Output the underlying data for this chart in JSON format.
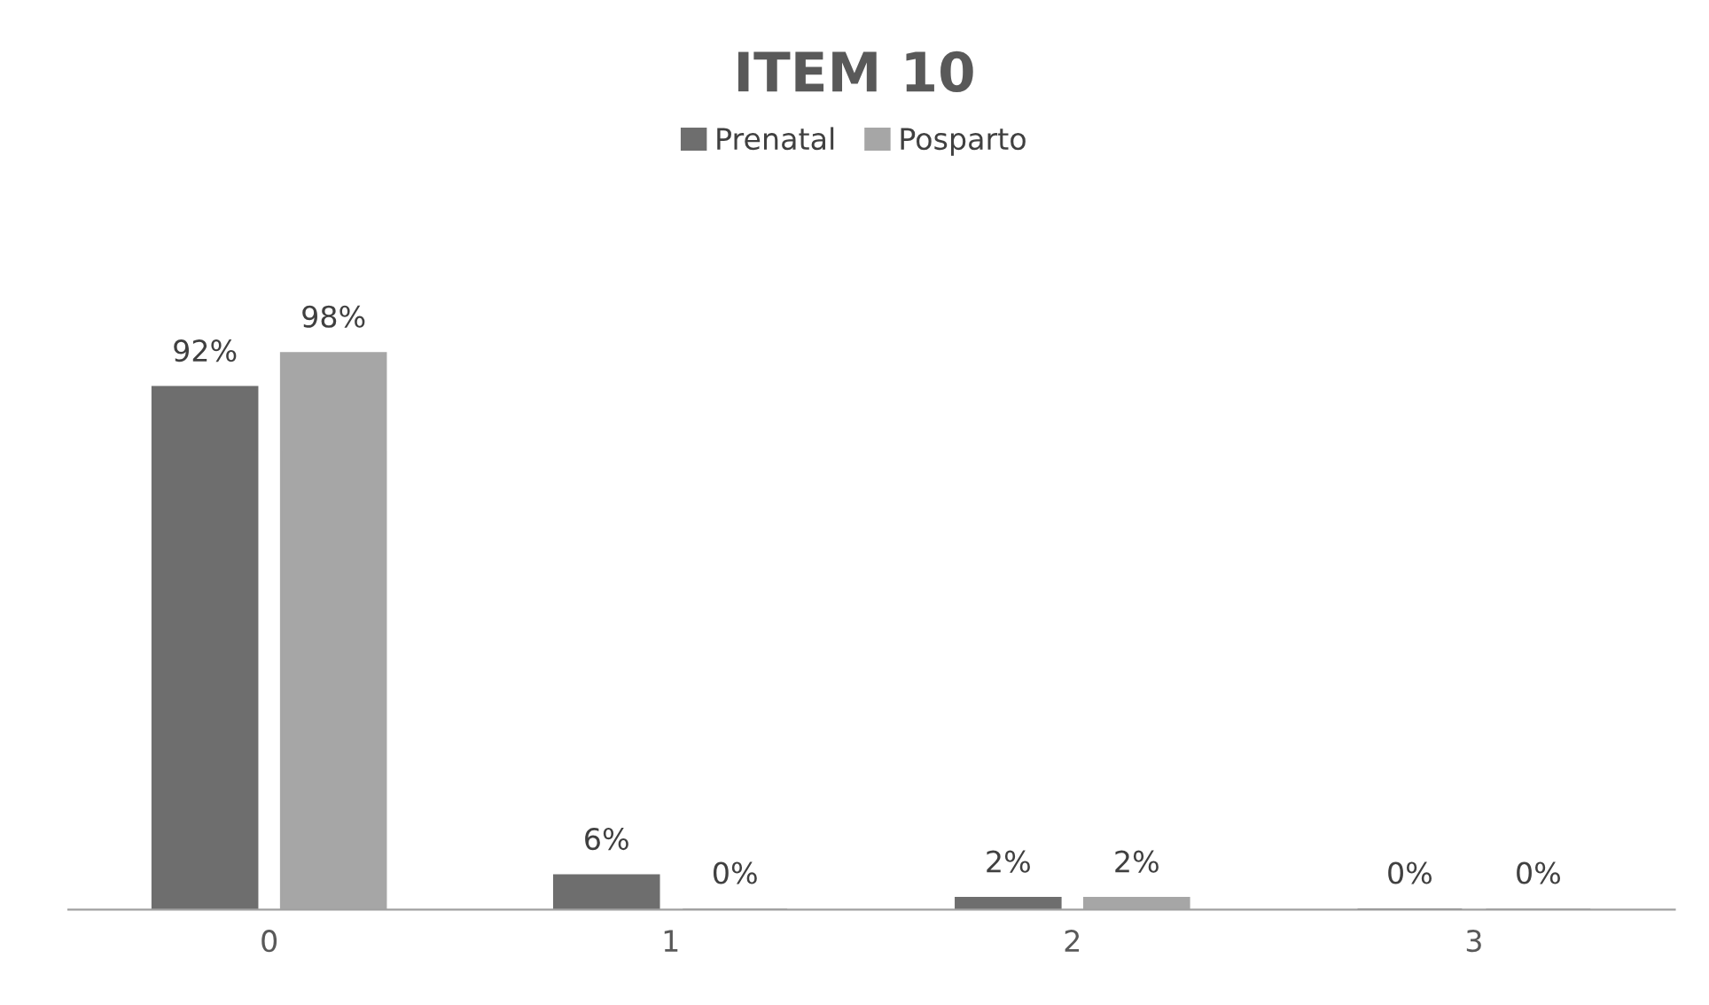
{
  "chart_data": {
    "type": "bar",
    "title": "ITEM 10",
    "categories": [
      "0",
      "1",
      "2",
      "3"
    ],
    "series": [
      {
        "name": "Prenatal",
        "color": "#6e6e6e",
        "values": [
          92,
          6,
          2,
          0
        ],
        "value_labels": [
          "92%",
          "6%",
          "2%",
          "0%"
        ]
      },
      {
        "name": "Posparto",
        "color": "#a6a6a6",
        "values": [
          98,
          0,
          2,
          0
        ],
        "value_labels": [
          "98%",
          "0%",
          "2%",
          "0%"
        ]
      }
    ],
    "legend": "top",
    "grid": false
  }
}
